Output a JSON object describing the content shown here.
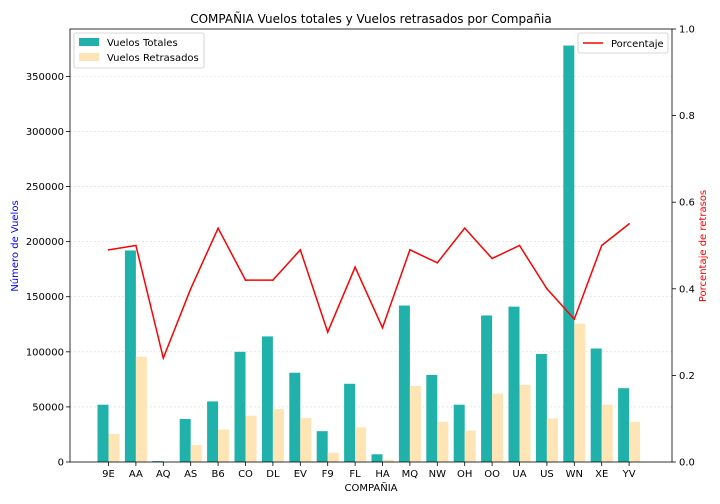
{
  "chart_data": {
    "type": "bar",
    "title": "COMPAÑIA Vuelos totales y Vuelos retrasados por  Compañia",
    "xlabel": "COMPAÑIA",
    "ylabel": "Número de Vuelos",
    "y2label": "Porcentaje de retrasos",
    "categories": [
      "9E",
      "AA",
      "AQ",
      "AS",
      "B6",
      "CO",
      "DL",
      "EV",
      "F9",
      "FL",
      "HA",
      "MQ",
      "NW",
      "OH",
      "OO",
      "UA",
      "US",
      "WN",
      "XE",
      "YV"
    ],
    "series": [
      {
        "name": "Vuelos Totales",
        "type": "bar",
        "axis": "left",
        "color": "#20b2aa",
        "values": [
          52000,
          192000,
          800,
          39000,
          55000,
          100000,
          114000,
          81000,
          28000,
          71000,
          7000,
          142000,
          79000,
          52000,
          133000,
          141000,
          98000,
          378000,
          103000,
          67000
        ]
      },
      {
        "name": "Vuelos Retrasados",
        "type": "bar",
        "axis": "left",
        "color": "#ffe4b5",
        "values": [
          25500,
          95500,
          200,
          15500,
          29500,
          42000,
          48000,
          40000,
          8500,
          31500,
          2200,
          69000,
          36500,
          28500,
          62000,
          70000,
          39500,
          125500,
          52000,
          36500
        ]
      },
      {
        "name": "Porcentaje",
        "type": "line",
        "axis": "right",
        "color": "#ff0000",
        "values": [
          0.49,
          0.5,
          0.24,
          0.4,
          0.54,
          0.42,
          0.42,
          0.49,
          0.3,
          0.45,
          0.31,
          0.49,
          0.46,
          0.54,
          0.47,
          0.5,
          0.4,
          0.33,
          0.5,
          0.55
        ]
      }
    ],
    "ylim": [
      0,
      393000
    ],
    "y2lim": [
      0,
      1.0
    ],
    "yticks": [
      0,
      50000,
      100000,
      150000,
      200000,
      250000,
      300000,
      350000
    ],
    "y2ticks": [
      "0.0",
      "0.2",
      "0.4",
      "0.6",
      "0.8",
      "1.0"
    ],
    "grid": true,
    "legend_left_position": "top-left",
    "legend_right_position": "top-right"
  }
}
